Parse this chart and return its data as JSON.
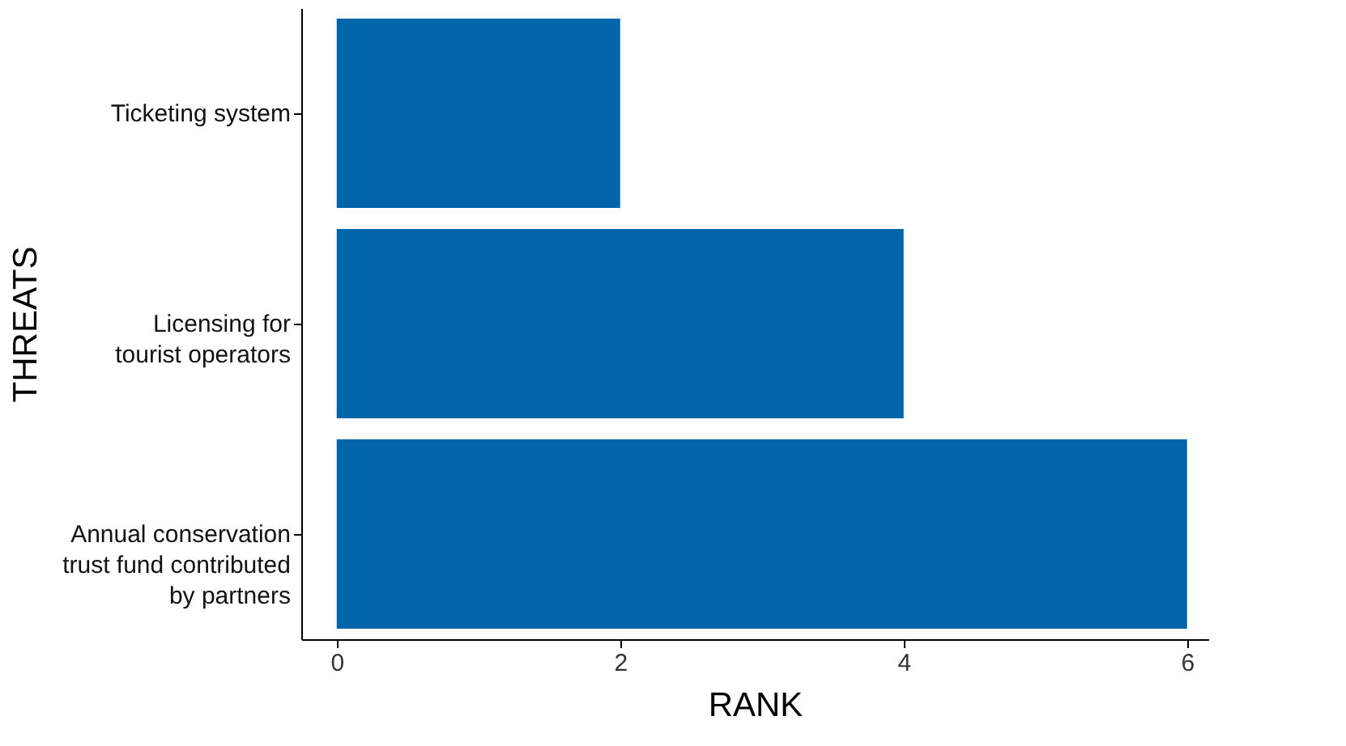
{
  "chart_data": {
    "type": "bar",
    "orientation": "horizontal",
    "xlabel": "RANK",
    "ylabel": "THREATS",
    "categories": [
      "Ticketing system",
      "Licensing for\ntourist operators",
      "Annual conservation\ntrust fund contributed\nby partners"
    ],
    "values": [
      2,
      4,
      6
    ],
    "color": "#0066aa",
    "xlim": [
      -0.25,
      6.15
    ],
    "xticks": [
      0,
      2,
      4,
      6
    ],
    "grid": false
  }
}
